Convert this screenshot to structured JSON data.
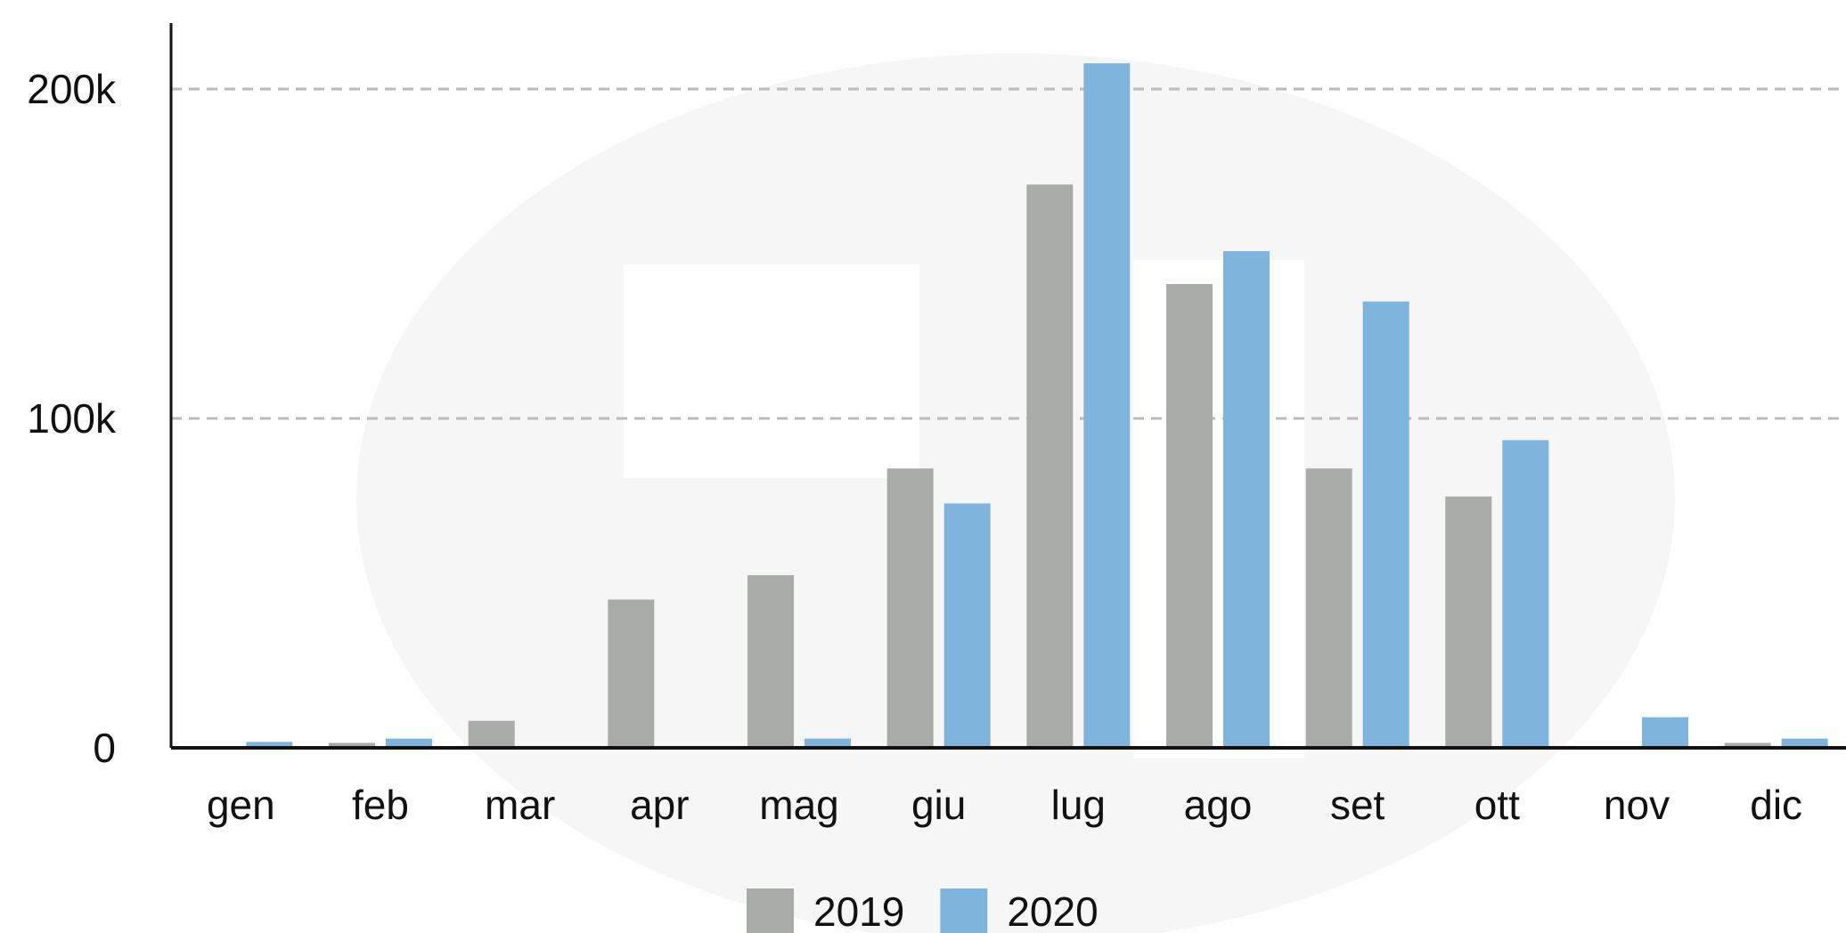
{
  "chart_data": {
    "type": "bar",
    "categories": [
      "gen",
      "feb",
      "mar",
      "apr",
      "mag",
      "giu",
      "lug",
      "ago",
      "set",
      "ott",
      "nov",
      "dic"
    ],
    "series": [
      {
        "name": "2019",
        "color": "#a8aba7",
        "values": [
          500,
          1500,
          8200,
          45000,
          52400,
          84800,
          171000,
          140800,
          84800,
          76300,
          0,
          1500
        ]
      },
      {
        "name": "2020",
        "color": "#7fb5dc",
        "values": [
          1800,
          2800,
          500,
          500,
          2800,
          74200,
          207800,
          150800,
          135500,
          93400,
          9300,
          2800
        ]
      }
    ],
    "ylim": [
      0,
      220000
    ],
    "yticks": [
      0,
      {
        "value": 100000,
        "label": "100k"
      },
      {
        "value": 200000,
        "label": "200k"
      }
    ],
    "grid": true,
    "legend": "bottom"
  }
}
